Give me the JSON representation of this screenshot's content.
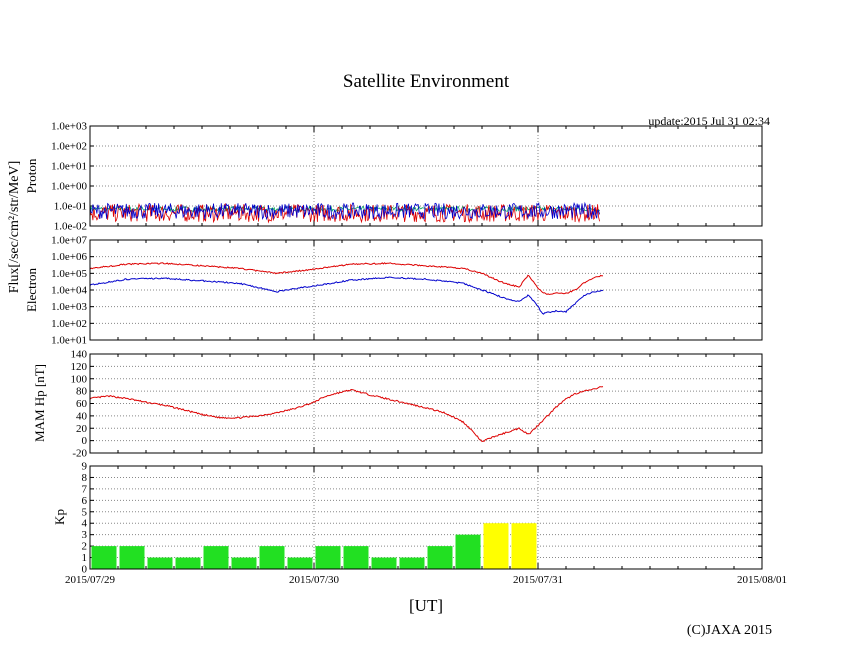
{
  "title": "Satellite Environment",
  "update": "update:2015 Jul 31 02:34",
  "copyright": "(C)JAXA 2015",
  "xlabel": "[UT]",
  "x_ticks": [
    "2015/07/29",
    "2015/07/30",
    "2015/07/31",
    "2015/08/01"
  ],
  "flux_label": "Flux[/sec/cm²/str/MeV]",
  "colors": {
    "red": "#dd0000",
    "blue": "#0000cc",
    "green": "#00a060",
    "kp_green": "#22e022",
    "kp_yellow": "#ffff00",
    "grid": "#888888"
  },
  "chart_data": [
    {
      "type": "line",
      "name": "proton",
      "ylabel": "Proton",
      "yscale": "log",
      "ylim": [
        -2,
        3
      ],
      "y_tick_labels": [
        "1.0e-02",
        "1.0e-01",
        "1.0e+00",
        "1.0e+01",
        "1.0e+02",
        "1.0e+03"
      ],
      "xlim": [
        0,
        72
      ],
      "data_end_hours": 54.6,
      "series": [
        {
          "name": "proton-low",
          "color": "green",
          "mean_log": -1.15,
          "spread": 0.12
        },
        {
          "name": "proton-mid",
          "color": "red",
          "mean_log": -1.35,
          "spread": 0.45
        },
        {
          "name": "proton-high",
          "color": "blue",
          "mean_log": -1.25,
          "spread": 0.4
        }
      ]
    },
    {
      "type": "line",
      "name": "electron",
      "ylabel": "Electron",
      "yscale": "log",
      "ylim": [
        1,
        7
      ],
      "y_tick_labels": [
        "1.0e+01",
        "1.0e+02",
        "1.0e+03",
        "1.0e+04",
        "1.0e+05",
        "1.0e+06",
        "1.0e+07"
      ],
      "xlim": [
        0,
        72
      ],
      "series": [
        {
          "name": "electron-red",
          "color": "red",
          "x": [
            0,
            4,
            8,
            12,
            16,
            20,
            24,
            28,
            32,
            36,
            40,
            42,
            44,
            45,
            46,
            47,
            48,
            48.5,
            49,
            50,
            51,
            52,
            53,
            54,
            55
          ],
          "y": [
            5.3,
            5.55,
            5.6,
            5.45,
            5.3,
            5.0,
            5.25,
            5.55,
            5.6,
            5.45,
            5.3,
            5.0,
            4.5,
            4.3,
            4.2,
            4.9,
            4.1,
            3.85,
            3.75,
            3.8,
            3.8,
            4.0,
            4.45,
            4.75,
            4.9
          ]
        },
        {
          "name": "electron-blue",
          "color": "blue",
          "x": [
            0,
            4,
            8,
            12,
            16,
            20,
            24,
            28,
            32,
            36,
            40,
            42,
            44,
            45,
            46,
            47,
            48,
            48.5,
            49,
            50,
            51,
            52,
            53,
            54,
            55
          ],
          "y": [
            4.3,
            4.65,
            4.7,
            4.55,
            4.4,
            3.9,
            4.25,
            4.6,
            4.75,
            4.65,
            4.4,
            4.0,
            3.6,
            3.4,
            3.3,
            3.7,
            3.0,
            2.55,
            2.65,
            2.75,
            2.7,
            3.2,
            3.7,
            3.9,
            4.0
          ]
        }
      ]
    },
    {
      "type": "line",
      "name": "mam-hp",
      "ylabel": "MAM Hp [nT]",
      "ylim": [
        -20,
        140
      ],
      "y_tick_labels": [
        "-20",
        "0",
        "20",
        "40",
        "60",
        "80",
        "100",
        "120",
        "140"
      ],
      "xlim": [
        0,
        72
      ],
      "series": [
        {
          "name": "hp",
          "color": "red",
          "x": [
            0,
            2,
            4,
            6,
            8,
            10,
            12,
            14,
            16,
            18,
            20,
            22,
            24,
            25,
            26,
            28,
            30,
            32,
            34,
            36,
            38,
            40,
            41,
            42,
            43,
            44,
            45,
            46,
            47,
            48,
            49,
            50,
            51,
            52,
            53,
            54,
            55
          ],
          "y": [
            68,
            72,
            68,
            62,
            57,
            50,
            42,
            37,
            37,
            40,
            45,
            52,
            62,
            70,
            75,
            82,
            74,
            67,
            60,
            53,
            45,
            30,
            15,
            -2,
            5,
            10,
            15,
            20,
            10,
            25,
            40,
            55,
            67,
            76,
            80,
            83,
            88
          ]
        }
      ]
    },
    {
      "type": "bar",
      "name": "kp",
      "ylabel": "Kp",
      "ylim": [
        0,
        9
      ],
      "y_tick_labels": [
        "0",
        "1",
        "2",
        "3",
        "4",
        "5",
        "6",
        "7",
        "8",
        "9"
      ],
      "xlim": [
        0,
        72
      ],
      "bin_hours": 3,
      "values": [
        2,
        2,
        1,
        1,
        2,
        1,
        2,
        1,
        2,
        2,
        1,
        1,
        2,
        3,
        4,
        4
      ],
      "bar_colors": [
        "kp_green",
        "kp_green",
        "kp_green",
        "kp_green",
        "kp_green",
        "kp_green",
        "kp_green",
        "kp_green",
        "kp_green",
        "kp_green",
        "kp_green",
        "kp_green",
        "kp_green",
        "kp_green",
        "kp_yellow",
        "kp_yellow"
      ]
    }
  ]
}
